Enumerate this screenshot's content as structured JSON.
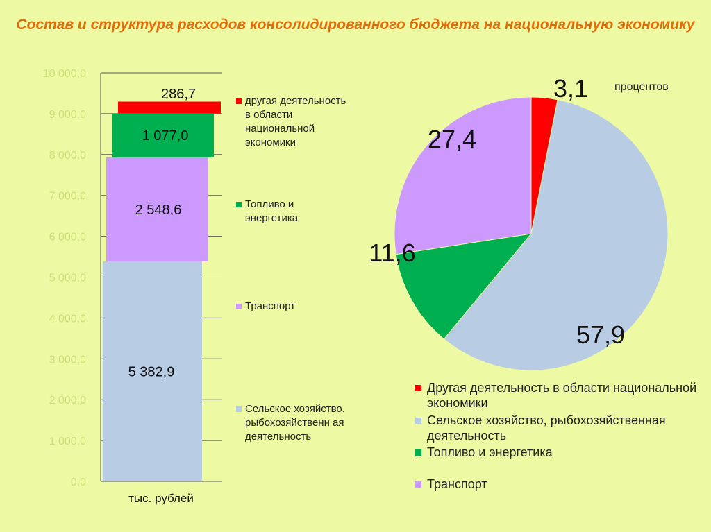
{
  "title": "Состав и структура расходов консолидированного бюджета на национальную экономику",
  "colors": {
    "other": "#ff0000",
    "agri": "#b8cce4",
    "fuel": "#00b050",
    "transport": "#cc99ff",
    "axis_text": "#cce07a",
    "gridline": "#555555"
  },
  "chart_data": [
    {
      "type": "bar",
      "stacked": true,
      "categories": [
        "тыс. рублей"
      ],
      "ylim": [
        0,
        10000
      ],
      "ytick_step": 1000,
      "yticks": [
        "0,0",
        "1 000,0",
        "2 000,0",
        "3 000,0",
        "4 000,0",
        "5 000,0",
        "6 000,0",
        "7 000,0",
        "8 000,0",
        "9 000,0",
        "10 000,0"
      ],
      "series": [
        {
          "name": "Сельское хозяйство, рыбохозяйственная деятельность",
          "key": "agri",
          "values": [
            5382.9
          ],
          "label": "5 382,9"
        },
        {
          "name": "Транспорт",
          "key": "transport",
          "values": [
            2548.6
          ],
          "label": "2 548,6"
        },
        {
          "name": "Топливо и энергетика",
          "key": "fuel",
          "values": [
            1077.0
          ],
          "label": "1 077,0"
        },
        {
          "name": "другая деятельность в области национальной экономики",
          "key": "other",
          "values": [
            286.7
          ],
          "label": "286,7"
        }
      ],
      "legend": [
        {
          "key": "other",
          "text": "другая деятельность в области национальной экономики"
        },
        {
          "key": "fuel",
          "text": "Топливо и энергетика"
        },
        {
          "key": "transport",
          "text": "Транспорт"
        },
        {
          "key": "agri",
          "text": "Сельское хозяйство, рыбохозяйственн ая деятельность"
        }
      ],
      "legend_position": "right",
      "grid": true
    },
    {
      "type": "pie",
      "unit_label": "процентов",
      "slices": [
        {
          "key": "other",
          "name": "Другая деятельность в области национальной экономики",
          "value": 3.1,
          "label": "3,1"
        },
        {
          "key": "agri",
          "name": "Сельское хозяйство, рыбохозяйственная деятельность",
          "value": 57.9,
          "label": "57,9"
        },
        {
          "key": "fuel",
          "name": "Топливо и энергетика",
          "value": 11.6,
          "label": "11,6"
        },
        {
          "key": "transport",
          "name": "Транспорт",
          "value": 27.4,
          "label": "27,4"
        }
      ],
      "legend": [
        {
          "key": "other",
          "text": "Другая деятельность в области национальной экономики"
        },
        {
          "key": "agri",
          "text": "Сельское хозяйство, рыбохозяйственная деятельность"
        },
        {
          "key": "fuel",
          "text": "Топливо и энергетика"
        },
        {
          "key": "transport",
          "text": "Транспорт"
        }
      ],
      "legend_position": "bottom"
    }
  ]
}
